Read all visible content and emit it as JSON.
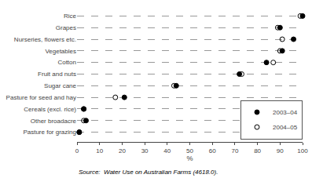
{
  "chart_data": {
    "type": "dot",
    "categories": [
      "Rice",
      "Grapes",
      "Nurseries, flowers etc.",
      "Vegetables",
      "Cotton",
      "Fruit and nuts",
      "Sugar cane",
      "Pasture for seed and hay",
      "Cereals (excl. rice)",
      "Other broadacre",
      "Pasture for grazing"
    ],
    "series": [
      {
        "name": "2003–04",
        "color": "#000000",
        "marker": "circle",
        "values": [
          100,
          90,
          96,
          91,
          84,
          72,
          44,
          21,
          3,
          4,
          1
        ]
      },
      {
        "name": "2004–05",
        "color": "#000000",
        "marker": "circle-open",
        "values": [
          99,
          89,
          91,
          90,
          87,
          73,
          43,
          17,
          3,
          3,
          1
        ]
      }
    ],
    "xlabel": "%",
    "xlim": [
      0,
      100
    ],
    "xticks": [
      0,
      10,
      20,
      30,
      40,
      50,
      60,
      70,
      80,
      90,
      100
    ],
    "grid": true,
    "legend": "lower right",
    "annotations": [
      "Source:  Water Use on Australian Farms (4618.0)."
    ]
  }
}
